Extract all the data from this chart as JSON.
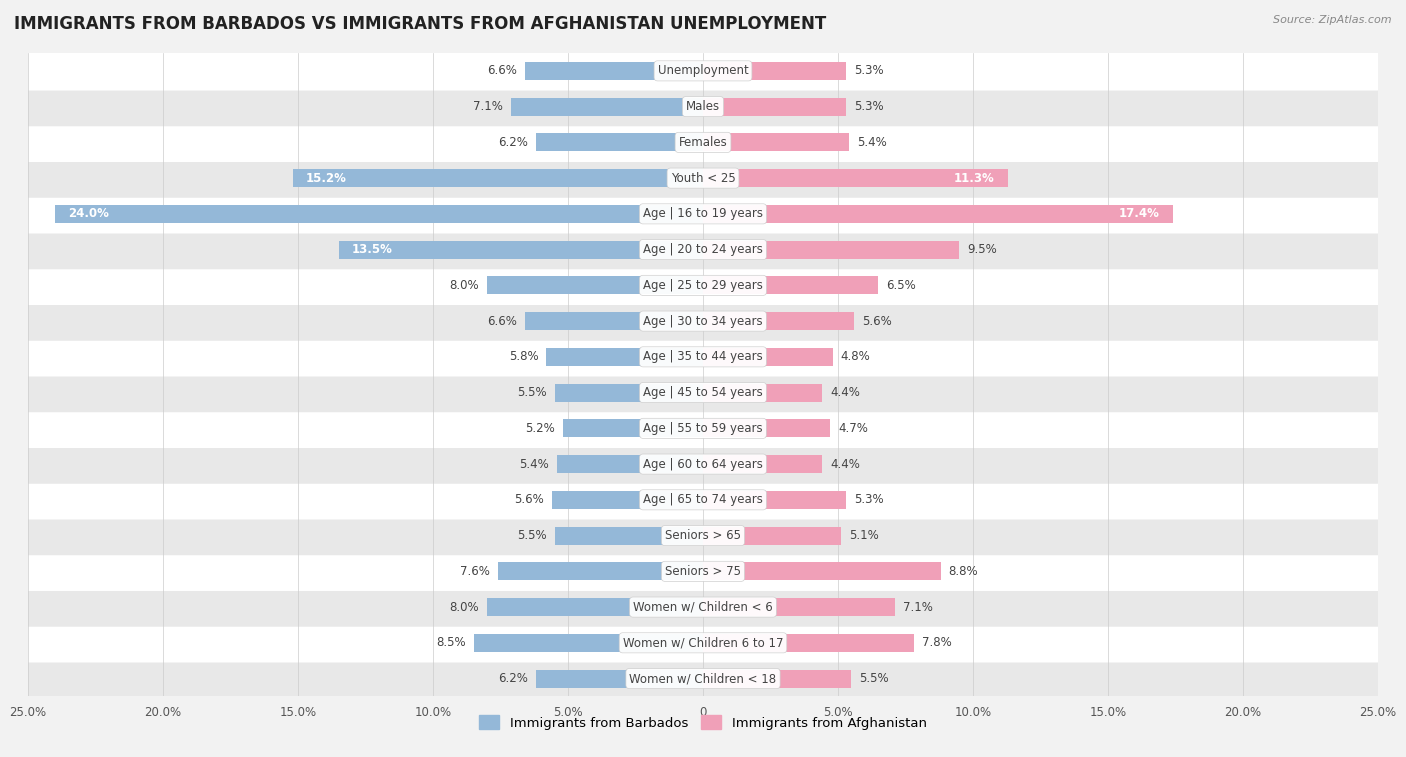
{
  "title": "IMMIGRANTS FROM BARBADOS VS IMMIGRANTS FROM AFGHANISTAN UNEMPLOYMENT",
  "source": "Source: ZipAtlas.com",
  "categories": [
    "Unemployment",
    "Males",
    "Females",
    "Youth < 25",
    "Age | 16 to 19 years",
    "Age | 20 to 24 years",
    "Age | 25 to 29 years",
    "Age | 30 to 34 years",
    "Age | 35 to 44 years",
    "Age | 45 to 54 years",
    "Age | 55 to 59 years",
    "Age | 60 to 64 years",
    "Age | 65 to 74 years",
    "Seniors > 65",
    "Seniors > 75",
    "Women w/ Children < 6",
    "Women w/ Children 6 to 17",
    "Women w/ Children < 18"
  ],
  "barbados_values": [
    6.6,
    7.1,
    6.2,
    15.2,
    24.0,
    13.5,
    8.0,
    6.6,
    5.8,
    5.5,
    5.2,
    5.4,
    5.6,
    5.5,
    7.6,
    8.0,
    8.5,
    6.2
  ],
  "afghanistan_values": [
    5.3,
    5.3,
    5.4,
    11.3,
    17.4,
    9.5,
    6.5,
    5.6,
    4.8,
    4.4,
    4.7,
    4.4,
    5.3,
    5.1,
    8.8,
    7.1,
    7.8,
    5.5
  ],
  "barbados_color": "#94b8d8",
  "afghanistan_color": "#f0a0b8",
  "barbados_label": "Immigrants from Barbados",
  "afghanistan_label": "Immigrants from Afghanistan",
  "axis_max": 25.0,
  "background_color": "#f2f2f2",
  "row_color_even": "#ffffff",
  "row_color_odd": "#e8e8e8",
  "title_fontsize": 12,
  "label_fontsize": 8.5,
  "value_fontsize": 8.5
}
